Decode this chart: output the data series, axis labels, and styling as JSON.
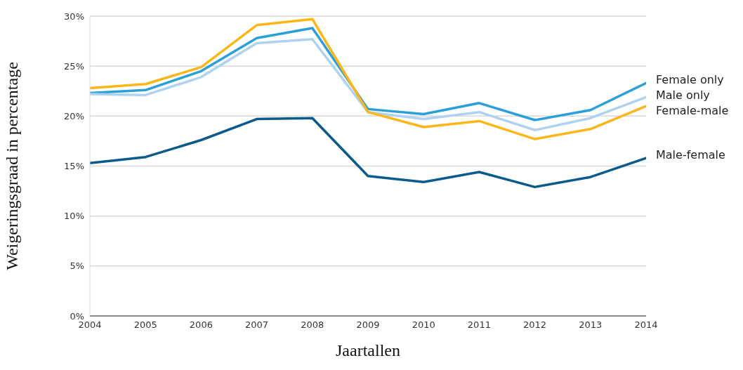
{
  "chart_data": {
    "type": "line",
    "xlabel": "Jaartallen",
    "ylabel": "Weigeringsgraad in percentage",
    "x": [
      2004,
      2005,
      2006,
      2007,
      2008,
      2009,
      2010,
      2011,
      2012,
      2013,
      2014
    ],
    "xlim": [
      2004,
      2014
    ],
    "xticks": [
      2004,
      2005,
      2006,
      2007,
      2008,
      2009,
      2010,
      2011,
      2012,
      2013,
      2014
    ],
    "ylim": [
      0,
      30
    ],
    "yticks": [
      {
        "value": 0,
        "label": "0%"
      },
      {
        "value": 5,
        "label": "5%"
      },
      {
        "value": 10,
        "label": "10%"
      },
      {
        "value": 15,
        "label": "15%"
      },
      {
        "value": 20,
        "label": "20%"
      },
      {
        "value": 25,
        "label": "25%"
      },
      {
        "value": 30,
        "label": "30%"
      }
    ],
    "grid": "y",
    "line_style": "solid",
    "series": [
      {
        "name": "Female only",
        "color": "#2a9fd8",
        "values": [
          22.3,
          22.6,
          24.5,
          27.8,
          28.8,
          20.7,
          20.2,
          21.3,
          19.6,
          20.6,
          23.3
        ]
      },
      {
        "name": "Male only",
        "color": "#aed2ef",
        "values": [
          22.2,
          22.1,
          23.9,
          27.3,
          27.7,
          20.4,
          19.7,
          20.4,
          18.6,
          19.8,
          21.9
        ]
      },
      {
        "name": "Female-male",
        "color": "#fbb71a",
        "values": [
          22.8,
          23.2,
          24.9,
          29.1,
          29.7,
          20.4,
          18.9,
          19.5,
          17.7,
          18.7,
          21.0
        ]
      },
      {
        "name": "Male-female",
        "color": "#0b5a8c",
        "values": [
          15.3,
          15.9,
          17.6,
          19.7,
          19.8,
          14.0,
          13.4,
          14.4,
          12.9,
          13.9,
          15.8
        ]
      }
    ]
  }
}
